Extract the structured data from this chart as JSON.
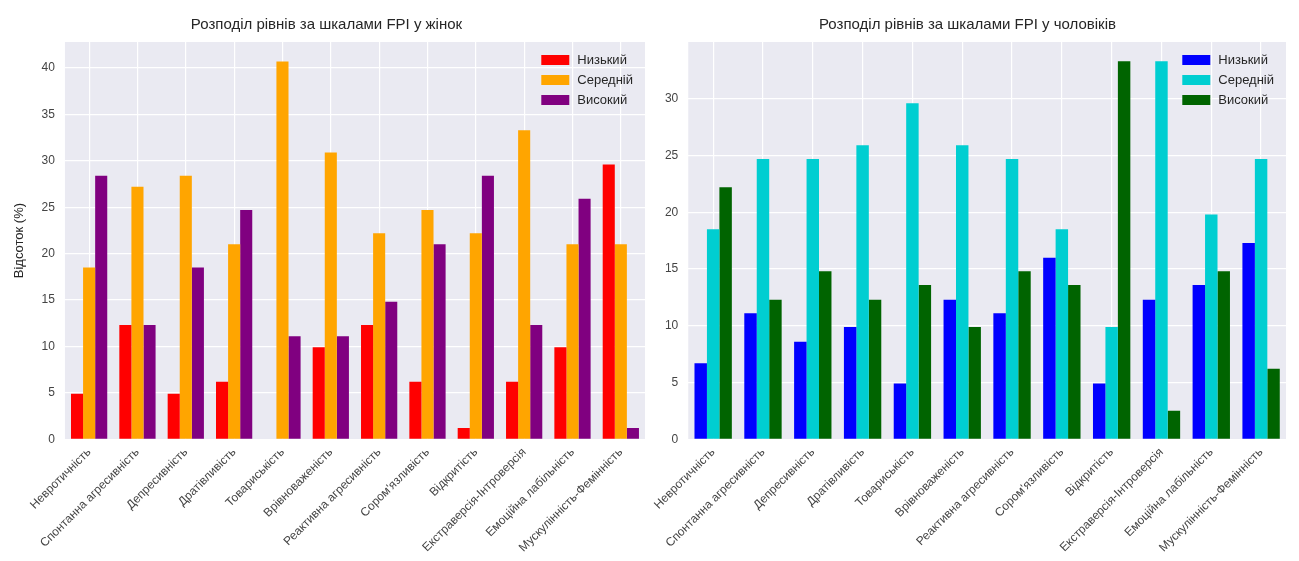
{
  "chart_data": [
    {
      "type": "bar",
      "title": "Розподіл рівнів за шкалами FPI у жінок",
      "ylabel": "Відсоток (%)",
      "categories": [
        "Невротичність",
        "Спонтанна агресивність",
        "Депресивність",
        "Дратівливість",
        "Товариськість",
        "Врівноваженість",
        "Реактивна агресивність",
        "Сором'язливість",
        "Відкритість",
        "Екстраверсія-Інтроверсія",
        "Емоційна лабільність",
        "Мускулінність-Фемінність"
      ],
      "series": [
        {
          "name": "Низький",
          "color": "#ff0000",
          "values": [
            4.9,
            12.3,
            4.9,
            6.2,
            0,
            9.9,
            12.3,
            6.2,
            1.2,
            6.2,
            9.9,
            29.6
          ]
        },
        {
          "name": "Середній",
          "color": "#ffa500",
          "values": [
            18.5,
            27.2,
            28.4,
            21.0,
            40.7,
            30.9,
            22.2,
            24.7,
            22.2,
            33.3,
            21.0,
            21.0
          ]
        },
        {
          "name": "Високий",
          "color": "#800080",
          "values": [
            28.4,
            12.3,
            18.5,
            24.7,
            11.1,
            11.1,
            14.8,
            21.0,
            28.4,
            12.3,
            25.9,
            1.2
          ]
        }
      ],
      "ylim": [
        0,
        42.8
      ],
      "yticks": [
        0,
        5,
        10,
        15,
        20,
        25,
        30,
        35,
        40
      ],
      "grid": true,
      "legend": "top right"
    },
    {
      "type": "bar",
      "title": "Розподіл рівнів за шкалами FPI у чоловіків",
      "categories": [
        "Невротичність",
        "Спонтанна агресивність",
        "Депресивність",
        "Дратівливість",
        "Товариськість",
        "Врівноваженість",
        "Реактивна агресивність",
        "Сором'язливість",
        "Відкритість",
        "Екстраверсія-Інтроверсія",
        "Емоційна лабільність",
        "Мускулінність-Фемінність"
      ],
      "series": [
        {
          "name": "Низький",
          "color": "#0000ff",
          "values": [
            6.7,
            11.1,
            8.6,
            9.9,
            4.9,
            12.3,
            11.1,
            16.0,
            4.9,
            12.3,
            13.6,
            17.3
          ]
        },
        {
          "name": "Середній",
          "color": "#00ced1",
          "values": [
            18.5,
            24.7,
            24.7,
            25.9,
            29.6,
            25.9,
            24.7,
            18.5,
            9.9,
            33.3,
            19.8,
            24.7
          ]
        },
        {
          "name": "Високий",
          "color": "#006400",
          "values": [
            22.2,
            12.3,
            14.8,
            12.3,
            13.6,
            9.9,
            14.8,
            13.6,
            33.3,
            2.5,
            14.8,
            6.2
          ]
        }
      ],
      "ylim": [
        0,
        35.0
      ],
      "yticks": [
        0,
        5,
        10,
        15,
        20,
        25,
        30
      ],
      "grid": true,
      "legend": "top right"
    }
  ]
}
